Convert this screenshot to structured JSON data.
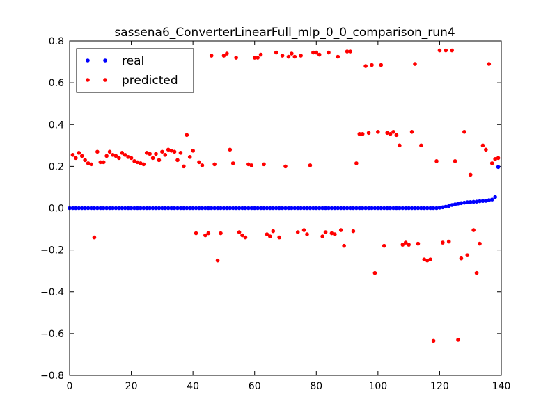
{
  "chart_data": {
    "type": "scatter",
    "title": "sassena6_ConverterLinearFull_mlp_0_0_comparison_run4",
    "xlabel": "",
    "ylabel": "",
    "xlim": [
      0,
      140
    ],
    "ylim": [
      -0.8,
      0.8
    ],
    "x_ticks": [
      0,
      20,
      40,
      60,
      80,
      100,
      120,
      140
    ],
    "x_tick_labels": [
      "0",
      "20",
      "40",
      "60",
      "80",
      "100",
      "120",
      "140"
    ],
    "y_ticks": [
      -0.8,
      -0.6,
      -0.4,
      -0.2,
      0.0,
      0.2,
      0.4,
      0.6,
      0.8
    ],
    "y_tick_labels": [
      "−0.8",
      "−0.6",
      "−0.4",
      "−0.2",
      "0.0",
      "0.2",
      "0.4",
      "0.6",
      "0.8"
    ],
    "grid": false,
    "legend_position": "top-left",
    "series": [
      {
        "name": "real",
        "color": "#0000ff",
        "x": [
          0,
          1,
          2,
          3,
          4,
          5,
          6,
          7,
          8,
          9,
          10,
          11,
          12,
          13,
          14,
          15,
          16,
          17,
          18,
          19,
          20,
          21,
          22,
          23,
          24,
          25,
          26,
          27,
          28,
          29,
          30,
          31,
          32,
          33,
          34,
          35,
          36,
          37,
          38,
          39,
          40,
          41,
          42,
          43,
          44,
          45,
          46,
          47,
          48,
          49,
          50,
          51,
          52,
          53,
          54,
          55,
          56,
          57,
          58,
          59,
          60,
          61,
          62,
          63,
          64,
          65,
          66,
          67,
          68,
          69,
          70,
          71,
          72,
          73,
          74,
          75,
          76,
          77,
          78,
          79,
          80,
          81,
          82,
          83,
          84,
          85,
          86,
          87,
          88,
          89,
          90,
          91,
          92,
          93,
          94,
          95,
          96,
          97,
          98,
          99,
          100,
          101,
          102,
          103,
          104,
          105,
          106,
          107,
          108,
          109,
          110,
          111,
          112,
          113,
          114,
          115,
          116,
          117,
          118,
          119,
          120,
          121,
          122,
          123,
          124,
          125,
          126,
          127,
          128,
          129,
          130,
          131,
          132,
          133,
          134,
          135,
          136,
          137,
          138,
          139
        ],
        "y": [
          0,
          0,
          0,
          0,
          0,
          0,
          0,
          0,
          0,
          0,
          0,
          0,
          0,
          0,
          0,
          0,
          0,
          0,
          0,
          0,
          0,
          0,
          0,
          0,
          0,
          0,
          0,
          0,
          0,
          0,
          0,
          0,
          0,
          0,
          0,
          0,
          0,
          0,
          0,
          0,
          0,
          0,
          0,
          0,
          0,
          0,
          0,
          0,
          0,
          0,
          0,
          0,
          0,
          0,
          0,
          0,
          0,
          0,
          0,
          0,
          0,
          0,
          0,
          0,
          0,
          0,
          0,
          0,
          0,
          0,
          0,
          0,
          0,
          0,
          0,
          0,
          0,
          0,
          0,
          0,
          0,
          0,
          0,
          0,
          0,
          0,
          0,
          0,
          0,
          0,
          0,
          0,
          0,
          0,
          0,
          0,
          0,
          0,
          0,
          0,
          0,
          0,
          0,
          0,
          0,
          0,
          0,
          0,
          0,
          0,
          0,
          0,
          0,
          0,
          0,
          0,
          0,
          0,
          0,
          0,
          0.002,
          0.004,
          0.007,
          0.01,
          0.015,
          0.018,
          0.022,
          0.024,
          0.026,
          0.028,
          0.029,
          0.03,
          0.031,
          0.033,
          0.034,
          0.035,
          0.038,
          0.041,
          0.053,
          0.197
        ]
      },
      {
        "name": "predicted",
        "color": "#ff0000",
        "x": [
          1,
          2,
          3,
          4,
          5,
          6,
          7,
          8,
          9,
          10,
          11,
          12,
          13,
          14,
          15,
          16,
          17,
          18,
          19,
          20,
          21,
          22,
          23,
          24,
          25,
          26,
          27,
          28,
          29,
          30,
          31,
          32,
          33,
          34,
          35,
          36,
          37,
          38,
          39,
          40,
          41,
          42,
          43,
          44,
          45,
          46,
          47,
          48,
          49,
          50,
          51,
          52,
          53,
          54,
          55,
          56,
          57,
          58,
          59,
          60,
          61,
          62,
          63,
          64,
          65,
          66,
          67,
          68,
          69,
          70,
          71,
          72,
          73,
          74,
          75,
          76,
          77,
          78,
          79,
          80,
          81,
          82,
          83,
          84,
          85,
          86,
          87,
          88,
          89,
          90,
          91,
          92,
          93,
          94,
          95,
          96,
          97,
          98,
          99,
          100,
          101,
          102,
          103,
          104,
          105,
          106,
          107,
          108,
          109,
          110,
          111,
          112,
          113,
          114,
          115,
          116,
          117,
          118,
          119,
          120,
          121,
          122,
          123,
          124,
          125,
          126,
          127,
          128,
          129,
          130,
          131,
          132,
          133,
          134,
          135,
          136,
          137,
          138,
          139
        ],
        "y": [
          0.255,
          0.24,
          0.265,
          0.25,
          0.23,
          0.215,
          0.21,
          -0.14,
          0.27,
          0.22,
          0.22,
          0.25,
          0.27,
          0.255,
          0.25,
          0.24,
          0.265,
          0.255,
          0.245,
          0.24,
          0.225,
          0.22,
          0.215,
          0.21,
          0.265,
          0.26,
          0.24,
          0.26,
          0.23,
          0.27,
          0.255,
          0.28,
          0.275,
          0.27,
          0.23,
          0.265,
          0.2,
          0.35,
          0.245,
          0.275,
          -0.12,
          0.22,
          0.205,
          -0.13,
          -0.12,
          0.73,
          0.21,
          -0.25,
          -0.12,
          0.73,
          0.74,
          0.28,
          0.215,
          0.72,
          -0.115,
          -0.13,
          -0.14,
          0.21,
          0.205,
          0.72,
          0.72,
          0.735,
          0.21,
          -0.125,
          -0.135,
          -0.11,
          0.745,
          -0.14,
          0.73,
          0.2,
          0.725,
          0.74,
          0.725,
          -0.115,
          0.73,
          -0.105,
          -0.125,
          0.205,
          0.745,
          0.745,
          0.735,
          -0.135,
          -0.115,
          0.745,
          -0.12,
          -0.125,
          0.725,
          -0.105,
          -0.18,
          0.75,
          0.75,
          -0.11,
          0.215,
          0.355,
          0.355,
          0.68,
          0.36,
          0.685,
          -0.31,
          0.365,
          0.685,
          -0.18,
          0.36,
          0.355,
          0.365,
          0.35,
          0.3,
          -0.175,
          -0.165,
          -0.175,
          0.365,
          0.69,
          -0.17,
          0.3,
          -0.245,
          -0.25,
          -0.245,
          -0.635,
          0.225,
          0.755,
          -0.165,
          0.755,
          -0.16,
          0.755,
          0.225,
          -0.63,
          -0.24,
          0.365,
          -0.225,
          0.16,
          -0.105,
          -0.31,
          -0.17,
          0.3,
          0.28,
          0.69,
          0.215,
          0.235,
          0.24
        ]
      }
    ]
  }
}
